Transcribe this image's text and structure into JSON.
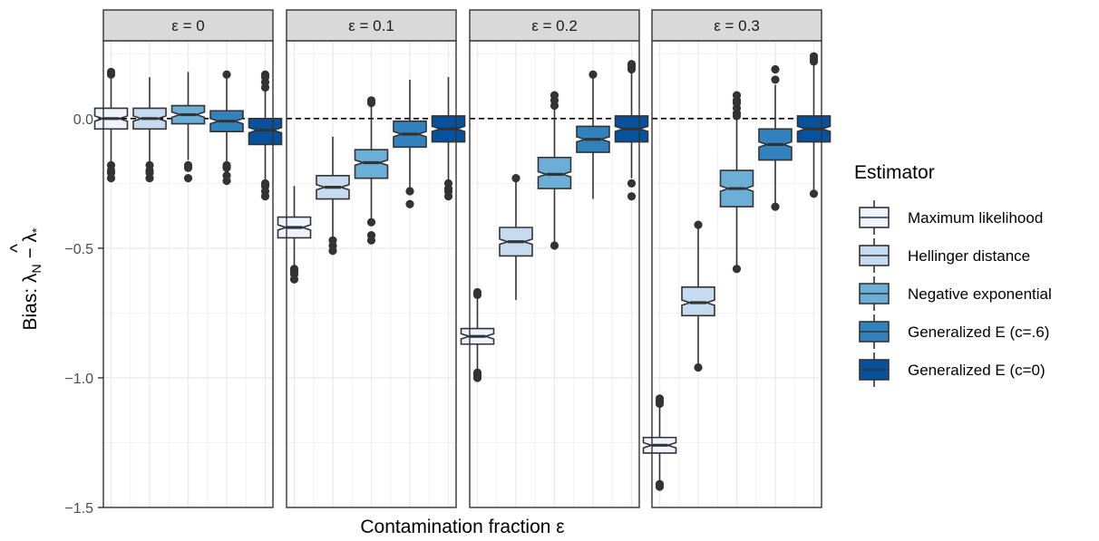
{
  "chart_data": {
    "type": "boxplot",
    "xlabel": "Contamination fraction ε",
    "ylabel_parts": {
      "prefix": "Bias: ",
      "lambda": "λ",
      "hat": "^",
      "sub_n": "N",
      "minus": " − λ",
      "sub_star": "*"
    },
    "ylim": [
      -1.5,
      0.3
    ],
    "yticks": [
      0.0,
      -0.5,
      -1.0,
      -1.5
    ],
    "ytick_labels": [
      "0.0",
      "−0.5",
      "−1.0",
      "−1.5"
    ],
    "reference_line": 0.0,
    "grid": true,
    "legend": {
      "title": "Estimator",
      "placement": "right",
      "entries": [
        {
          "name": "Maximum likelihood",
          "color": "#eff3ff"
        },
        {
          "name": "Hellinger distance",
          "color": "#c6dbef"
        },
        {
          "name": "Negative exponential",
          "color": "#6baed6"
        },
        {
          "name": "Generalized E (c=.6)",
          "color": "#3182bd"
        },
        {
          "name": "Generalized E (c=0)",
          "color": "#08519c"
        }
      ]
    },
    "panels": [
      {
        "label": "ε = 0",
        "boxes": [
          {
            "q1": -0.04,
            "median": 0.0,
            "q3": 0.04,
            "notch": [
              -0.01,
              0.01
            ],
            "wlo": -0.17,
            "whi": 0.16,
            "outliers": [
              -0.18,
              -0.2,
              -0.21,
              -0.23,
              0.17,
              0.18
            ]
          },
          {
            "q1": -0.04,
            "median": 0.0,
            "q3": 0.04,
            "notch": [
              -0.01,
              0.01
            ],
            "wlo": -0.17,
            "whi": 0.16,
            "outliers": [
              -0.18,
              -0.2,
              -0.21,
              -0.23
            ]
          },
          {
            "q1": -0.02,
            "median": 0.015,
            "q3": 0.05,
            "notch": [
              0.005,
              0.025
            ],
            "wlo": -0.16,
            "whi": 0.18,
            "outliers": [
              -0.18,
              -0.19,
              -0.23
            ]
          },
          {
            "q1": -0.05,
            "median": -0.01,
            "q3": 0.03,
            "notch": [
              -0.02,
              0.0
            ],
            "wlo": -0.17,
            "whi": 0.16,
            "outliers": [
              -0.18,
              -0.19,
              -0.22,
              -0.24,
              0.17
            ]
          },
          {
            "q1": -0.1,
            "median": -0.045,
            "q3": 0.0,
            "notch": [
              -0.055,
              -0.035
            ],
            "wlo": -0.24,
            "whi": 0.15,
            "outliers": [
              -0.25,
              -0.26,
              -0.28,
              -0.3,
              0.12,
              0.14,
              0.16,
              0.17
            ]
          }
        ]
      },
      {
        "label": "ε = 0.1",
        "boxes": [
          {
            "q1": -0.46,
            "median": -0.42,
            "q3": -0.38,
            "notch": [
              -0.43,
              -0.41
            ],
            "wlo": -0.57,
            "whi": -0.26,
            "outliers": [
              -0.58,
              -0.59,
              -0.6,
              -0.62
            ]
          },
          {
            "q1": -0.31,
            "median": -0.265,
            "q3": -0.22,
            "notch": [
              -0.275,
              -0.255
            ],
            "wlo": -0.46,
            "whi": -0.07,
            "outliers": [
              -0.47,
              -0.49,
              -0.51
            ]
          },
          {
            "q1": -0.23,
            "median": -0.17,
            "q3": -0.12,
            "notch": [
              -0.18,
              -0.16
            ],
            "wlo": -0.39,
            "whi": 0.05,
            "outliers": [
              -0.4,
              -0.45,
              -0.47,
              0.06,
              0.07
            ]
          },
          {
            "q1": -0.11,
            "median": -0.06,
            "q3": -0.01,
            "notch": [
              -0.07,
              -0.05
            ],
            "wlo": -0.27,
            "whi": 0.15,
            "outliers": [
              -0.28,
              -0.33
            ]
          },
          {
            "q1": -0.09,
            "median": -0.04,
            "q3": 0.01,
            "notch": [
              -0.05,
              -0.03
            ],
            "wlo": -0.24,
            "whi": 0.16,
            "outliers": [
              -0.25,
              -0.27,
              -0.28,
              -0.3
            ]
          }
        ]
      },
      {
        "label": "ε = 0.2",
        "boxes": [
          {
            "q1": -0.87,
            "median": -0.84,
            "q3": -0.81,
            "notch": [
              -0.85,
              -0.83
            ],
            "wlo": -0.97,
            "whi": -0.69,
            "outliers": [
              -0.98,
              -0.99,
              -1.0,
              -0.68,
              -0.67
            ]
          },
          {
            "q1": -0.53,
            "median": -0.475,
            "q3": -0.42,
            "notch": [
              -0.485,
              -0.465
            ],
            "wlo": -0.7,
            "whi": -0.24,
            "outliers": [
              -0.23
            ]
          },
          {
            "q1": -0.27,
            "median": -0.215,
            "q3": -0.15,
            "notch": [
              -0.225,
              -0.205
            ],
            "wlo": -0.48,
            "whi": 0.04,
            "outliers": [
              -0.49,
              0.05,
              0.07,
              0.09
            ]
          },
          {
            "q1": -0.13,
            "median": -0.08,
            "q3": -0.03,
            "notch": [
              -0.09,
              -0.07
            ],
            "wlo": -0.31,
            "whi": 0.16,
            "outliers": [
              0.17
            ]
          },
          {
            "q1": -0.09,
            "median": -0.04,
            "q3": 0.01,
            "notch": [
              -0.05,
              -0.03
            ],
            "wlo": -0.23,
            "whi": 0.18,
            "outliers": [
              -0.25,
              -0.3,
              0.19,
              0.2,
              0.21
            ]
          }
        ]
      },
      {
        "label": "ε = 0.3",
        "boxes": [
          {
            "q1": -1.29,
            "median": -1.26,
            "q3": -1.23,
            "notch": [
              -1.27,
              -1.25
            ],
            "wlo": -1.4,
            "whi": -1.11,
            "outliers": [
              -1.41,
              -1.42,
              -1.1,
              -1.09,
              -1.08
            ]
          },
          {
            "q1": -0.76,
            "median": -0.71,
            "q3": -0.65,
            "notch": [
              -0.72,
              -0.7
            ],
            "wlo": -0.95,
            "whi": -0.42,
            "outliers": [
              -0.96,
              -0.41
            ]
          },
          {
            "q1": -0.34,
            "median": -0.27,
            "q3": -0.2,
            "notch": [
              -0.28,
              -0.26
            ],
            "wlo": -0.57,
            "whi": 0.0,
            "outliers": [
              -0.58,
              0.01,
              0.02,
              0.04,
              0.06,
              0.07,
              0.09
            ]
          },
          {
            "q1": -0.16,
            "median": -0.1,
            "q3": -0.04,
            "notch": [
              -0.11,
              -0.09
            ],
            "wlo": -0.33,
            "whi": 0.13,
            "outliers": [
              -0.34,
              0.15,
              0.19
            ]
          },
          {
            "q1": -0.09,
            "median": -0.04,
            "q3": 0.01,
            "notch": [
              -0.05,
              -0.03
            ],
            "wlo": -0.28,
            "whi": 0.21,
            "outliers": [
              -0.29,
              0.22,
              0.23,
              0.24
            ]
          }
        ]
      }
    ]
  }
}
